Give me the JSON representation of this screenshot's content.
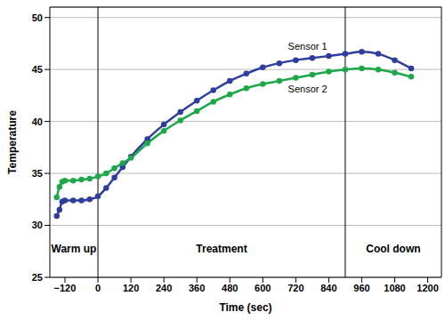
{
  "chart_data": {
    "type": "line",
    "x_label": "Time (sec)",
    "y_label": "Temperature",
    "x": [
      -150,
      -140,
      -130,
      -120,
      -90,
      -60,
      -30,
      0,
      30,
      60,
      90,
      120,
      180,
      240,
      300,
      360,
      420,
      480,
      540,
      600,
      660,
      720,
      780,
      840,
      900,
      960,
      1020,
      1080,
      1140
    ],
    "series": [
      {
        "name": "Sensor 1",
        "color": "#2e3d9e",
        "marker": "circle",
        "values": [
          30.9,
          31.5,
          32.3,
          32.4,
          32.4,
          32.4,
          32.5,
          32.8,
          33.6,
          34.6,
          35.6,
          36.6,
          38.3,
          39.7,
          40.9,
          42.0,
          43.0,
          43.9,
          44.6,
          45.2,
          45.6,
          45.9,
          46.1,
          46.3,
          46.5,
          46.7,
          46.5,
          45.9,
          45.1
        ]
      },
      {
        "name": "Sensor 2",
        "color": "#1fa84a",
        "marker": "circle",
        "values": [
          32.7,
          33.7,
          34.2,
          34.3,
          34.3,
          34.4,
          34.5,
          34.7,
          35.0,
          35.5,
          36.0,
          36.5,
          37.9,
          39.1,
          40.1,
          41.0,
          41.9,
          42.6,
          43.2,
          43.6,
          43.9,
          44.2,
          44.5,
          44.8,
          45.0,
          45.1,
          45.0,
          44.7,
          44.3
        ]
      }
    ],
    "annotations": [
      {
        "text": "Sensor 1",
        "x": 763,
        "y": 47.2
      },
      {
        "text": "Sensor 2",
        "x": 763,
        "y": 43.1
      }
    ],
    "phases": [
      "Warm up",
      "Treatment",
      "Cool down"
    ],
    "phase_boundaries": [
      0,
      900
    ],
    "xlim": [
      -175,
      1250
    ],
    "xticks": [
      {
        "value": -120,
        "label": "−120"
      },
      0,
      120,
      240,
      360,
      480,
      600,
      720,
      840,
      960,
      1080,
      1200
    ],
    "ylim": [
      25,
      51
    ],
    "yticks": [
      25,
      30,
      35,
      40,
      45,
      50
    ],
    "grid": true
  }
}
